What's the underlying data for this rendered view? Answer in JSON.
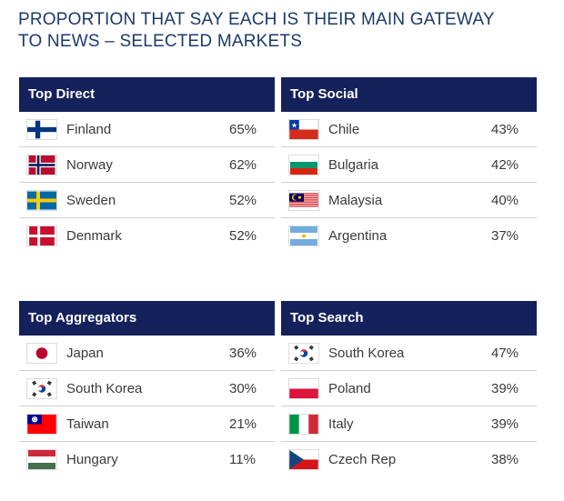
{
  "title": {
    "line1": "PROPORTION THAT SAY EACH IS THEIR MAIN GATEWAY",
    "line2": "TO NEWS – SELECTED MARKETS"
  },
  "colors": {
    "header_bg": "#15215a",
    "title": "#1b3a6b"
  },
  "panels": [
    {
      "heading": "Top Direct",
      "rows": [
        {
          "flag": "finland-flag",
          "country": "Finland",
          "pct": "65%"
        },
        {
          "flag": "norway-flag",
          "country": "Norway",
          "pct": "62%"
        },
        {
          "flag": "sweden-flag",
          "country": "Sweden",
          "pct": "52%"
        },
        {
          "flag": "denmark-flag",
          "country": "Denmark",
          "pct": "52%"
        }
      ]
    },
    {
      "heading": "Top Social",
      "rows": [
        {
          "flag": "chile-flag",
          "country": "Chile",
          "pct": "43%"
        },
        {
          "flag": "bulgaria-flag",
          "country": "Bulgaria",
          "pct": "42%"
        },
        {
          "flag": "malaysia-flag",
          "country": "Malaysia",
          "pct": "40%"
        },
        {
          "flag": "argentina-flag",
          "country": "Argentina",
          "pct": "37%"
        }
      ]
    },
    {
      "heading": "Top Aggregators",
      "rows": [
        {
          "flag": "japan-flag",
          "country": "Japan",
          "pct": "36%"
        },
        {
          "flag": "south-korea-flag",
          "country": "South Korea",
          "pct": "30%"
        },
        {
          "flag": "taiwan-flag",
          "country": "Taiwan",
          "pct": "21%"
        },
        {
          "flag": "hungary-flag",
          "country": "Hungary",
          "pct": "11%"
        }
      ]
    },
    {
      "heading": "Top Search",
      "rows": [
        {
          "flag": "south-korea-flag",
          "country": "South Korea",
          "pct": "47%"
        },
        {
          "flag": "poland-flag",
          "country": "Poland",
          "pct": "39%"
        },
        {
          "flag": "italy-flag",
          "country": "Italy",
          "pct": "39%"
        },
        {
          "flag": "czech-republic-flag",
          "country": "Czech Rep",
          "pct": "38%"
        }
      ]
    }
  ]
}
